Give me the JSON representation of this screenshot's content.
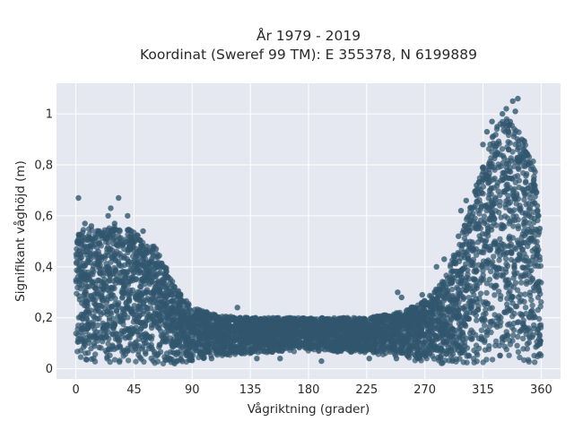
{
  "chart_data": {
    "type": "scatter",
    "title_lines": [
      "År 1979 - 2019",
      "Koordinat (Sweref 99 TM): E 355378, N 6199889"
    ],
    "xlabel": "Vågriktning (grader)",
    "ylabel": "Signifikant våghöjd (m)",
    "xlim": [
      -15,
      375
    ],
    "ylim": [
      -0.04,
      1.12
    ],
    "xticks": [
      0,
      45,
      90,
      135,
      180,
      225,
      270,
      315,
      360
    ],
    "xtick_labels": [
      "0",
      "45",
      "90",
      "135",
      "180",
      "225",
      "270",
      "315",
      "360"
    ],
    "yticks": [
      0,
      0.2,
      0.4,
      0.6,
      0.8,
      1
    ],
    "ytick_labels": [
      "0",
      "0,2",
      "0,4",
      "0,6",
      "0,8",
      "1"
    ],
    "grid": true,
    "colors": {
      "marker": "#30566e",
      "plot_bg": "#e5e8f0",
      "grid": "#ffffff"
    },
    "envelope": [
      {
        "x": 0,
        "ymin": 0.02,
        "ymax": 0.54
      },
      {
        "x": 10,
        "ymin": 0.02,
        "ymax": 0.55
      },
      {
        "x": 20,
        "ymin": 0.02,
        "ymax": 0.54
      },
      {
        "x": 30,
        "ymin": 0.02,
        "ymax": 0.56
      },
      {
        "x": 40,
        "ymin": 0.02,
        "ymax": 0.55
      },
      {
        "x": 50,
        "ymin": 0.02,
        "ymax": 0.52
      },
      {
        "x": 60,
        "ymin": 0.02,
        "ymax": 0.49
      },
      {
        "x": 70,
        "ymin": 0.02,
        "ymax": 0.4
      },
      {
        "x": 80,
        "ymin": 0.02,
        "ymax": 0.3
      },
      {
        "x": 90,
        "ymin": 0.03,
        "ymax": 0.24
      },
      {
        "x": 110,
        "ymin": 0.05,
        "ymax": 0.21
      },
      {
        "x": 135,
        "ymin": 0.06,
        "ymax": 0.2
      },
      {
        "x": 180,
        "ymin": 0.07,
        "ymax": 0.2
      },
      {
        "x": 225,
        "ymin": 0.06,
        "ymax": 0.2
      },
      {
        "x": 250,
        "ymin": 0.05,
        "ymax": 0.22
      },
      {
        "x": 270,
        "ymin": 0.02,
        "ymax": 0.27
      },
      {
        "x": 285,
        "ymin": 0.02,
        "ymax": 0.35
      },
      {
        "x": 300,
        "ymin": 0.02,
        "ymax": 0.55
      },
      {
        "x": 315,
        "ymin": 0.02,
        "ymax": 0.8
      },
      {
        "x": 325,
        "ymin": 0.02,
        "ymax": 0.95
      },
      {
        "x": 335,
        "ymin": 0.02,
        "ymax": 1.0
      },
      {
        "x": 345,
        "ymin": 0.02,
        "ymax": 0.92
      },
      {
        "x": 355,
        "ymin": 0.02,
        "ymax": 0.8
      },
      {
        "x": 360,
        "ymin": 0.02,
        "ymax": 0.45
      }
    ],
    "outliers": [
      [
        2,
        0.67
      ],
      [
        7,
        0.57
      ],
      [
        12,
        0.56
      ],
      [
        25,
        0.6
      ],
      [
        27,
        0.63
      ],
      [
        30,
        0.57
      ],
      [
        33,
        0.67
      ],
      [
        40,
        0.6
      ],
      [
        52,
        0.54
      ],
      [
        55,
        0.48
      ],
      [
        62,
        0.47
      ],
      [
        70,
        0.38
      ],
      [
        96,
        0.06
      ],
      [
        105,
        0.04
      ],
      [
        125,
        0.24
      ],
      [
        140,
        0.04
      ],
      [
        158,
        0.04
      ],
      [
        190,
        0.03
      ],
      [
        227,
        0.04
      ],
      [
        248,
        0.04
      ],
      [
        249,
        0.3
      ],
      [
        252,
        0.28
      ],
      [
        268,
        0.29
      ],
      [
        279,
        0.4
      ],
      [
        285,
        0.43
      ],
      [
        296,
        0.52
      ],
      [
        302,
        0.66
      ],
      [
        310,
        0.72
      ],
      [
        315,
        0.88
      ],
      [
        318,
        0.93
      ],
      [
        322,
        0.97
      ],
      [
        326,
        0.95
      ],
      [
        330,
        1.0
      ],
      [
        333,
        1.02
      ],
      [
        336,
        0.97
      ],
      [
        338,
        1.05
      ],
      [
        340,
        1.01
      ],
      [
        342,
        1.06
      ],
      [
        345,
        0.9
      ],
      [
        348,
        0.85
      ],
      [
        352,
        0.72
      ],
      [
        355,
        0.65
      ],
      [
        358,
        0.6
      ],
      [
        359,
        0.55
      ],
      [
        298,
        0.62
      ],
      [
        304,
        0.6
      ],
      [
        357,
        0.48
      ]
    ]
  }
}
